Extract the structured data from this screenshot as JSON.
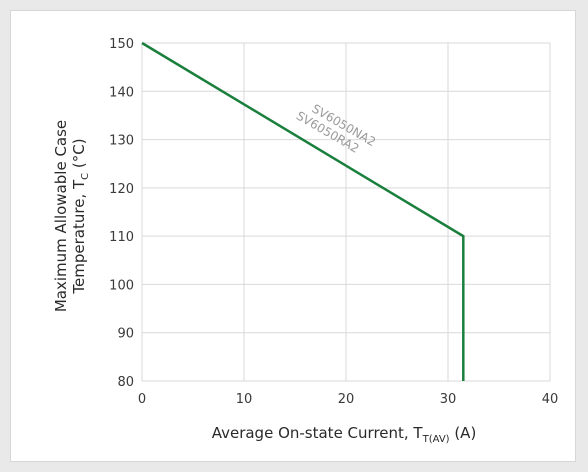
{
  "chart_data": {
    "type": "line",
    "xlabel": {
      "main": "Average On-state Current, T",
      "sub": "T(AV)",
      "tail": " (A)"
    },
    "ylabel": {
      "line1": "Maximum Allowable Case",
      "line2_main": "Temperature, T",
      "line2_sub": "C",
      "line2_tail": " (°C)"
    },
    "xlim": [
      0,
      40
    ],
    "ylim": [
      80,
      150
    ],
    "x_ticks": [
      0,
      10,
      20,
      30,
      40
    ],
    "y_ticks": [
      80,
      90,
      100,
      110,
      120,
      130,
      140,
      150
    ],
    "grid": true,
    "series": [
      {
        "points": [
          [
            0,
            150
          ],
          [
            31.5,
            110
          ],
          [
            31.5,
            80
          ]
        ],
        "color": "#1a7f3c"
      }
    ],
    "annotations": [
      "SV6050NA2",
      "SV6050RA2"
    ]
  }
}
